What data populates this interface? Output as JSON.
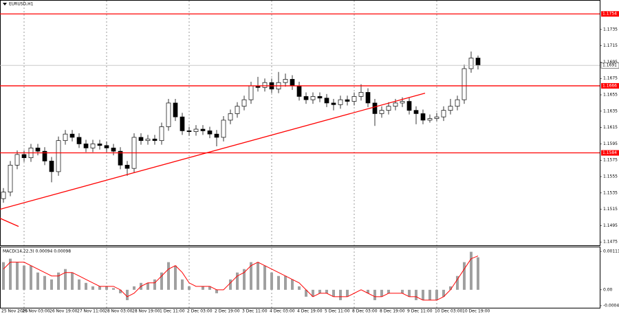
{
  "chart_data": {
    "type": "candlestick",
    "title": "EURUSD,H1",
    "categories": [
      "25 Nov 2025",
      null,
      null,
      "26 Nov 03:00",
      null,
      null,
      null,
      "26 Nov 19:00",
      null,
      null,
      null,
      "27 Nov 11:00",
      null,
      null,
      null,
      "28 Nov 03:00",
      null,
      null,
      null,
      "28 Nov 19:00",
      null,
      null,
      null,
      "1 Dec 11:00",
      null,
      null,
      null,
      "2 Dec 03:00",
      null,
      null,
      null,
      "2 Dec 19:00",
      null,
      null,
      null,
      "3 Dec 11:00",
      null,
      null,
      null,
      "4 Dec 03:00",
      null,
      null,
      null,
      "4 Dec 19:00",
      null,
      null,
      null,
      "5 Dec 11:00",
      null,
      null,
      null,
      "8 Dec 03:00",
      null,
      null,
      null,
      "8 Dec 19:00",
      null,
      null,
      null,
      "9 Dec 11:00",
      null,
      null,
      null,
      "10 Dec 03:00",
      null,
      null,
      null,
      "10 Dec 19:00",
      null,
      null
    ],
    "open": [
      1.1528,
      1.1536,
      1.1569,
      1.1582,
      1.1578,
      1.159,
      1.1586,
      1.1574,
      1.1561,
      1.1599,
      1.1607,
      1.1603,
      1.1595,
      1.159,
      1.1595,
      1.1593,
      1.159,
      1.1586,
      1.1569,
      1.1565,
      1.1603,
      1.1599,
      1.1601,
      1.1599,
      1.1616,
      1.1645,
      1.1628,
      1.1611,
      1.161,
      1.1613,
      1.1611,
      1.1607,
      1.1603,
      1.1624,
      1.1632,
      1.1641,
      1.1649,
      1.1666,
      1.1664,
      1.167,
      1.1662,
      1.167,
      1.1674,
      1.1666,
      1.1653,
      1.1649,
      1.1653,
      1.1651,
      1.1645,
      1.1643,
      1.1649,
      1.1647,
      1.1653,
      1.1658,
      1.1645,
      1.1632,
      1.1636,
      1.1641,
      1.1645,
      1.1647,
      1.1636,
      1.1632,
      1.1624,
      1.1626,
      1.1628,
      1.1636,
      1.1641,
      1.1649,
      1.1687,
      1.17
    ],
    "high": [
      1.1541,
      1.1574,
      1.1587,
      1.1587,
      1.1595,
      1.1595,
      1.1591,
      1.1579,
      1.1604,
      1.1612,
      1.1612,
      1.1608,
      1.16,
      1.16,
      1.16,
      1.1598,
      1.1595,
      1.1591,
      1.1574,
      1.1608,
      1.1608,
      1.1606,
      1.1606,
      1.1621,
      1.165,
      1.165,
      1.1633,
      1.1616,
      1.1618,
      1.1618,
      1.1616,
      1.1612,
      1.1629,
      1.1637,
      1.1646,
      1.1654,
      1.1671,
      1.1677,
      1.1675,
      1.1675,
      1.1683,
      1.1681,
      1.1679,
      1.1671,
      1.1658,
      1.1658,
      1.1658,
      1.1656,
      1.165,
      1.1654,
      1.1654,
      1.1658,
      1.1668,
      1.1663,
      1.165,
      1.1641,
      1.1646,
      1.165,
      1.1652,
      1.1652,
      1.1641,
      1.1637,
      1.1631,
      1.1633,
      1.1641,
      1.165,
      1.1654,
      1.1692,
      1.1708,
      1.1703
    ],
    "low": [
      1.1523,
      1.1531,
      1.1564,
      1.1573,
      1.1573,
      1.1581,
      1.1569,
      1.1548,
      1.1556,
      1.1594,
      1.1598,
      1.159,
      1.1585,
      1.1585,
      1.1588,
      1.1585,
      1.1581,
      1.1564,
      1.1556,
      1.156,
      1.1594,
      1.1594,
      1.1594,
      1.1594,
      1.1611,
      1.1623,
      1.1606,
      1.1605,
      1.1605,
      1.1606,
      1.1602,
      1.1592,
      1.1598,
      1.1619,
      1.1627,
      1.1636,
      1.1644,
      1.1659,
      1.1659,
      1.1657,
      1.1657,
      1.1665,
      1.1661,
      1.1648,
      1.1644,
      1.1644,
      1.1646,
      1.164,
      1.1636,
      1.1638,
      1.1642,
      1.1642,
      1.1648,
      1.164,
      1.1617,
      1.1627,
      1.1631,
      1.1636,
      1.164,
      1.1631,
      1.1619,
      1.1619,
      1.1621,
      1.1623,
      1.1623,
      1.1631,
      1.1636,
      1.1644,
      1.1682,
      1.1686
    ],
    "close": [
      1.1536,
      1.1569,
      1.1582,
      1.1578,
      1.159,
      1.1586,
      1.1574,
      1.1561,
      1.1599,
      1.1607,
      1.1603,
      1.1595,
      1.159,
      1.1595,
      1.1593,
      1.159,
      1.1586,
      1.1569,
      1.1565,
      1.1603,
      1.1599,
      1.1601,
      1.1599,
      1.1616,
      1.1645,
      1.1628,
      1.1611,
      1.161,
      1.1613,
      1.1611,
      1.1607,
      1.1603,
      1.1624,
      1.1632,
      1.1641,
      1.1649,
      1.1666,
      1.1664,
      1.167,
      1.1662,
      1.167,
      1.1674,
      1.1666,
      1.1653,
      1.1649,
      1.1653,
      1.1651,
      1.1645,
      1.1643,
      1.1649,
      1.1647,
      1.1653,
      1.1658,
      1.1645,
      1.1632,
      1.1636,
      1.1641,
      1.1645,
      1.1647,
      1.1636,
      1.1632,
      1.1624,
      1.1626,
      1.1628,
      1.1636,
      1.1641,
      1.1649,
      1.1687,
      1.17,
      1.1691
    ],
    "ylim": [
      1.1471,
      1.1771
    ],
    "yticks": [
      1.1475,
      1.1495,
      1.1515,
      1.1535,
      1.1555,
      1.1575,
      1.1595,
      1.1615,
      1.1635,
      1.1655,
      1.1675,
      1.1695,
      1.1715,
      1.1735
    ],
    "levels": [
      1.1754,
      1.1666,
      1.1584
    ],
    "level_color": "#ff0000",
    "current_price": 1.1691,
    "trendlines": [
      {
        "x": [
          -0.5,
          61.3
        ],
        "y": [
          1.1515,
          1.1657
        ]
      },
      {
        "x": [
          -0.5,
          2.2
        ],
        "y": [
          1.1504,
          1.1494
        ]
      }
    ],
    "macd": {
      "title": "MACD(14,22,3) 0.00094 0.00098",
      "ylim": [
        -0.00052,
        0.00123
      ],
      "yticks": [
        0.00111,
        {
          "value": 0,
          "label": "0.00"
        },
        -0.00046
      ],
      "histogram_color": "#a0a0a0",
      "signal_color": "#ff0000",
      "histogram": [
        0.0008,
        0.0009,
        0.0008,
        0.0007,
        0.0007,
        0.0005,
        0.0004,
        0.0003,
        0.0005,
        0.0006,
        0.0005,
        0.0003,
        0.0002,
        0.0001,
        0.0001,
        0.0001,
        5e-05,
        -0.0001,
        -0.0003,
        0.0001,
        0.0002,
        0.0002,
        0.0003,
        0.0005,
        0.0008,
        0.0007,
        0.0003,
        0.0001,
        0,
        0.0001,
        0.0001,
        -0.0001,
        0,
        0.0003,
        0.0005,
        0.0006,
        0.0008,
        0.0008,
        0.0007,
        0.0005,
        0.0004,
        0.0004,
        0.0003,
        0.0001,
        -0.0002,
        -0.0002,
        -0.0001,
        -0.0001,
        -0.0002,
        -0.0003,
        -0.0002,
        0,
        0,
        -0.0001,
        -0.0003,
        -0.0002,
        -0.0001,
        0,
        -0.0001,
        -0.0002,
        -0.0003,
        -0.0003,
        -0.0003,
        -0.0003,
        -0.0002,
        0.0001,
        0.0004,
        0.0008,
        0.0011,
        0.00094
      ],
      "signal": [
        0.0006,
        0.0008,
        0.0008,
        0.0008,
        0.0007,
        0.0006,
        0.0005,
        0.0004,
        0.0004,
        0.0005,
        0.0005,
        0.0004,
        0.0003,
        0.0002,
        0.0001,
        0.0001,
        0.0001,
        0,
        -0.0002,
        -0.0001,
        0.0001,
        0.0002,
        0.0002,
        0.0004,
        0.0006,
        0.0007,
        0.0005,
        0.0002,
        0.0001,
        0.0001,
        0.0001,
        0,
        0,
        0.0002,
        0.0004,
        0.0005,
        0.0007,
        0.0008,
        0.0007,
        0.0006,
        0.0005,
        0.0004,
        0.0003,
        0.0002,
        0,
        -0.0002,
        -0.0001,
        -0.0001,
        -0.0002,
        -0.0002,
        -0.0002,
        -0.0001,
        0,
        -0.0001,
        -0.0002,
        -0.0002,
        -0.0001,
        -0.0001,
        -0.0001,
        -0.0002,
        -0.0002,
        -0.0003,
        -0.0003,
        -0.0003,
        -0.0002,
        0,
        0.0003,
        0.0006,
        0.0009,
        0.00098
      ]
    }
  }
}
